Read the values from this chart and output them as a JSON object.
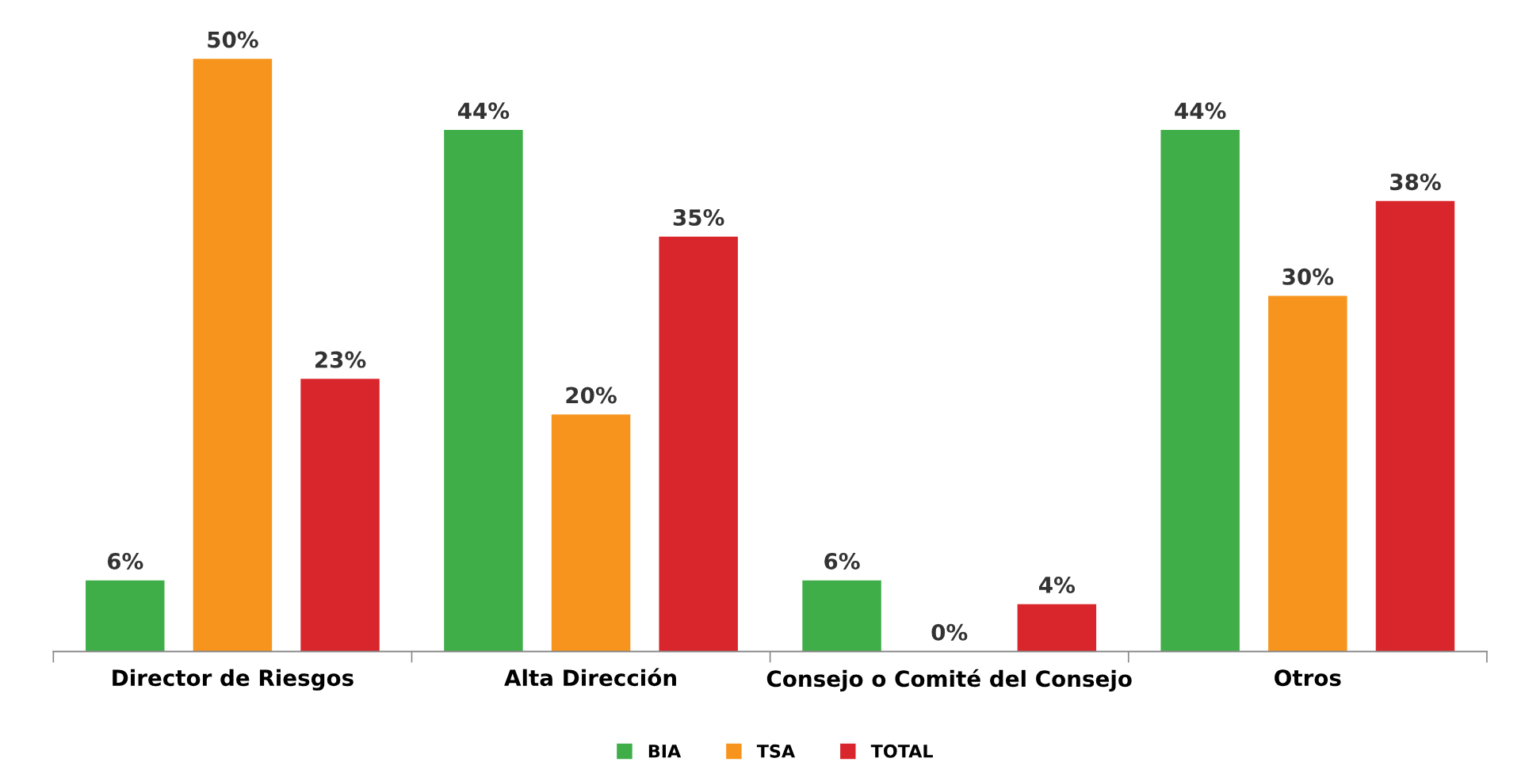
{
  "chart_data": {
    "type": "bar",
    "categories": [
      "Director de Riesgos",
      "Alta Dirección",
      "Consejo o Comité del Consejo",
      "Otros"
    ],
    "series": [
      {
        "name": "BIA",
        "color": "#3fae49",
        "values": [
          6,
          44,
          6,
          44
        ],
        "value_labels": [
          "6%",
          "44%",
          "6%",
          "44%"
        ]
      },
      {
        "name": "TSA",
        "color": "#f7941d",
        "values": [
          50,
          20,
          0,
          30
        ],
        "value_labels": [
          "50%",
          "20%",
          "0%",
          "30%"
        ]
      },
      {
        "name": "TOTAL",
        "color": "#d9262c",
        "values": [
          23,
          35,
          4,
          38
        ],
        "value_labels": [
          "23%",
          "35%",
          "4%",
          "38%"
        ]
      }
    ],
    "legend": "bottom",
    "grid": false
  }
}
